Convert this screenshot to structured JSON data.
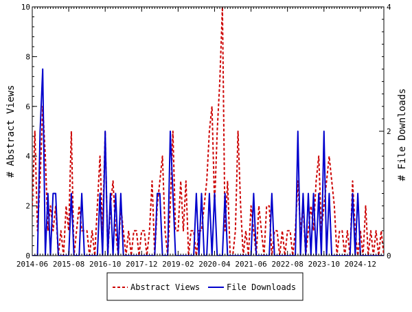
{
  "chart_data": {
    "type": "line",
    "title": "",
    "x_axis": {
      "type": "date",
      "range": [
        "2014-06",
        "2025-09"
      ],
      "ticks": [
        "2014-06",
        "2015-08",
        "2016-10",
        "2017-12",
        "2019-02",
        "2020-04",
        "2021-06",
        "2022-08",
        "2023-10",
        "2024-12"
      ]
    },
    "y_axis_left": {
      "label": "# Abstract Views",
      "range": [
        0,
        10
      ],
      "ticks": [
        "0",
        "2",
        "4",
        "6",
        "8",
        "10"
      ]
    },
    "y_axis_right": {
      "label": "# File Downloads",
      "range": [
        0,
        4
      ],
      "ticks": [
        "0",
        "2",
        "4"
      ]
    },
    "grid": false,
    "legend": {
      "position": "bottom-center",
      "entries": [
        "Abstract Views",
        "File Downloads"
      ]
    },
    "series": [
      {
        "name": "Abstract Views",
        "axis": "left",
        "color": "#cc0000",
        "style": "dashed",
        "points": [
          [
            "2014-06",
            2
          ],
          [
            "2014-07",
            5
          ],
          [
            "2014-08",
            1
          ],
          [
            "2014-09",
            3
          ],
          [
            "2014-10",
            6
          ],
          [
            "2014-11",
            4
          ],
          [
            "2014-12",
            1
          ],
          [
            "2015-01",
            2
          ],
          [
            "2015-02",
            1
          ],
          [
            "2015-03",
            2
          ],
          [
            "2015-04",
            0
          ],
          [
            "2015-05",
            1
          ],
          [
            "2015-06",
            0
          ],
          [
            "2015-07",
            2
          ],
          [
            "2015-08",
            1
          ],
          [
            "2015-09",
            5
          ],
          [
            "2015-10",
            0
          ],
          [
            "2015-11",
            1
          ],
          [
            "2015-12",
            2
          ],
          [
            "2016-01",
            1
          ],
          [
            "2016-02",
            1
          ],
          [
            "2016-03",
            1
          ],
          [
            "2016-04",
            0
          ],
          [
            "2016-05",
            1
          ],
          [
            "2016-06",
            0
          ],
          [
            "2016-07",
            2
          ],
          [
            "2016-08",
            4
          ],
          [
            "2016-09",
            1
          ],
          [
            "2016-10",
            5
          ],
          [
            "2016-11",
            0
          ],
          [
            "2016-12",
            2
          ],
          [
            "2017-01",
            3
          ],
          [
            "2017-02",
            1
          ],
          [
            "2017-03",
            0
          ],
          [
            "2017-04",
            2
          ],
          [
            "2017-05",
            1
          ],
          [
            "2017-06",
            0
          ],
          [
            "2017-07",
            1
          ],
          [
            "2017-08",
            0
          ],
          [
            "2017-09",
            1
          ],
          [
            "2017-10",
            1
          ],
          [
            "2017-11",
            0
          ],
          [
            "2017-12",
            1
          ],
          [
            "2018-01",
            1
          ],
          [
            "2018-02",
            0
          ],
          [
            "2018-03",
            1
          ],
          [
            "2018-04",
            3
          ],
          [
            "2018-05",
            0
          ],
          [
            "2018-06",
            2
          ],
          [
            "2018-07",
            3
          ],
          [
            "2018-08",
            4
          ],
          [
            "2018-09",
            1
          ],
          [
            "2018-10",
            0
          ],
          [
            "2018-11",
            2
          ],
          [
            "2018-12",
            5
          ],
          [
            "2019-01",
            1
          ],
          [
            "2019-02",
            1
          ],
          [
            "2019-03",
            3
          ],
          [
            "2019-04",
            1
          ],
          [
            "2019-05",
            3
          ],
          [
            "2019-06",
            0
          ],
          [
            "2019-07",
            1
          ],
          [
            "2019-08",
            1
          ],
          [
            "2019-09",
            0
          ],
          [
            "2019-10",
            1
          ],
          [
            "2019-11",
            1
          ],
          [
            "2019-12",
            2
          ],
          [
            "2020-01",
            3
          ],
          [
            "2020-02",
            5
          ],
          [
            "2020-03",
            6
          ],
          [
            "2020-04",
            2
          ],
          [
            "2020-05",
            5
          ],
          [
            "2020-06",
            7
          ],
          [
            "2020-07",
            10
          ],
          [
            "2020-08",
            1
          ],
          [
            "2020-09",
            3
          ],
          [
            "2020-10",
            0
          ],
          [
            "2020-11",
            0
          ],
          [
            "2020-12",
            1
          ],
          [
            "2021-01",
            5
          ],
          [
            "2021-02",
            2
          ],
          [
            "2021-03",
            0
          ],
          [
            "2021-04",
            1
          ],
          [
            "2021-05",
            0
          ],
          [
            "2021-06",
            2
          ],
          [
            "2021-07",
            1
          ],
          [
            "2021-08",
            0
          ],
          [
            "2021-09",
            2
          ],
          [
            "2021-10",
            1
          ],
          [
            "2021-11",
            0
          ],
          [
            "2021-12",
            2
          ],
          [
            "2022-01",
            2
          ],
          [
            "2022-02",
            0
          ],
          [
            "2022-03",
            1
          ],
          [
            "2022-04",
            1
          ],
          [
            "2022-05",
            0
          ],
          [
            "2022-06",
            1
          ],
          [
            "2022-07",
            0
          ],
          [
            "2022-08",
            1
          ],
          [
            "2022-09",
            1
          ],
          [
            "2022-10",
            0
          ],
          [
            "2022-11",
            1
          ],
          [
            "2022-12",
            3
          ],
          [
            "2023-01",
            1
          ],
          [
            "2023-02",
            2
          ],
          [
            "2023-03",
            0
          ],
          [
            "2023-04",
            1
          ],
          [
            "2023-05",
            2
          ],
          [
            "2023-06",
            1
          ],
          [
            "2023-07",
            3
          ],
          [
            "2023-08",
            4
          ],
          [
            "2023-09",
            1
          ],
          [
            "2023-10",
            2
          ],
          [
            "2023-11",
            3
          ],
          [
            "2023-12",
            4
          ],
          [
            "2024-01",
            3
          ],
          [
            "2024-02",
            2
          ],
          [
            "2024-03",
            0
          ],
          [
            "2024-04",
            1
          ],
          [
            "2024-05",
            1
          ],
          [
            "2024-06",
            0
          ],
          [
            "2024-07",
            1
          ],
          [
            "2024-08",
            0
          ],
          [
            "2024-09",
            3
          ],
          [
            "2024-10",
            1
          ],
          [
            "2024-11",
            0
          ],
          [
            "2024-12",
            1
          ],
          [
            "2025-01",
            0
          ],
          [
            "2025-02",
            2
          ],
          [
            "2025-03",
            0
          ],
          [
            "2025-04",
            1
          ],
          [
            "2025-05",
            0
          ],
          [
            "2025-06",
            1
          ],
          [
            "2025-07",
            0
          ],
          [
            "2025-08",
            1
          ],
          [
            "2025-09",
            0
          ]
        ]
      },
      {
        "name": "File Downloads",
        "axis": "right",
        "color": "#0000cc",
        "style": "solid",
        "points": [
          [
            "2014-06",
            0
          ],
          [
            "2014-07",
            0
          ],
          [
            "2014-08",
            0
          ],
          [
            "2014-09",
            2
          ],
          [
            "2014-10",
            3
          ],
          [
            "2014-11",
            0
          ],
          [
            "2014-12",
            1
          ],
          [
            "2015-01",
            0
          ],
          [
            "2015-02",
            1
          ],
          [
            "2015-03",
            1
          ],
          [
            "2015-04",
            0
          ],
          [
            "2015-05",
            0
          ],
          [
            "2015-06",
            0
          ],
          [
            "2015-07",
            0
          ],
          [
            "2015-08",
            0
          ],
          [
            "2015-09",
            1
          ],
          [
            "2015-10",
            0
          ],
          [
            "2015-11",
            0
          ],
          [
            "2015-12",
            0
          ],
          [
            "2016-01",
            1
          ],
          [
            "2016-02",
            0
          ],
          [
            "2016-03",
            0
          ],
          [
            "2016-04",
            0
          ],
          [
            "2016-05",
            0
          ],
          [
            "2016-06",
            0
          ],
          [
            "2016-07",
            0
          ],
          [
            "2016-08",
            1
          ],
          [
            "2016-09",
            0
          ],
          [
            "2016-10",
            2
          ],
          [
            "2016-11",
            0
          ],
          [
            "2016-12",
            1
          ],
          [
            "2017-01",
            0
          ],
          [
            "2017-02",
            1
          ],
          [
            "2017-03",
            0
          ],
          [
            "2017-04",
            1
          ],
          [
            "2017-05",
            0
          ],
          [
            "2017-06",
            0
          ],
          [
            "2017-07",
            0
          ],
          [
            "2017-08",
            0
          ],
          [
            "2017-09",
            0
          ],
          [
            "2017-10",
            0
          ],
          [
            "2017-11",
            0
          ],
          [
            "2017-12",
            0
          ],
          [
            "2018-01",
            0
          ],
          [
            "2018-02",
            0
          ],
          [
            "2018-03",
            0
          ],
          [
            "2018-04",
            0
          ],
          [
            "2018-05",
            0
          ],
          [
            "2018-06",
            1
          ],
          [
            "2018-07",
            1
          ],
          [
            "2018-08",
            0
          ],
          [
            "2018-09",
            0
          ],
          [
            "2018-10",
            0
          ],
          [
            "2018-11",
            2
          ],
          [
            "2018-12",
            1
          ],
          [
            "2019-01",
            0
          ],
          [
            "2019-02",
            0
          ],
          [
            "2019-03",
            0
          ],
          [
            "2019-04",
            0
          ],
          [
            "2019-05",
            0
          ],
          [
            "2019-06",
            0
          ],
          [
            "2019-07",
            0
          ],
          [
            "2019-08",
            0
          ],
          [
            "2019-09",
            1
          ],
          [
            "2019-10",
            0
          ],
          [
            "2019-11",
            1
          ],
          [
            "2019-12",
            0
          ],
          [
            "2020-01",
            0
          ],
          [
            "2020-02",
            1
          ],
          [
            "2020-03",
            0
          ],
          [
            "2020-04",
            1
          ],
          [
            "2020-05",
            0
          ],
          [
            "2020-06",
            0
          ],
          [
            "2020-07",
            0
          ],
          [
            "2020-08",
            1
          ],
          [
            "2020-09",
            0
          ],
          [
            "2020-10",
            0
          ],
          [
            "2020-11",
            0
          ],
          [
            "2020-12",
            0
          ],
          [
            "2021-01",
            0
          ],
          [
            "2021-02",
            0
          ],
          [
            "2021-03",
            0
          ],
          [
            "2021-04",
            0
          ],
          [
            "2021-05",
            0
          ],
          [
            "2021-06",
            0
          ],
          [
            "2021-07",
            1
          ],
          [
            "2021-08",
            0
          ],
          [
            "2021-09",
            0
          ],
          [
            "2021-10",
            0
          ],
          [
            "2021-11",
            0
          ],
          [
            "2021-12",
            0
          ],
          [
            "2022-01",
            0
          ],
          [
            "2022-02",
            1
          ],
          [
            "2022-03",
            0
          ],
          [
            "2022-04",
            0
          ],
          [
            "2022-05",
            0
          ],
          [
            "2022-06",
            0
          ],
          [
            "2022-07",
            0
          ],
          [
            "2022-08",
            0
          ],
          [
            "2022-09",
            0
          ],
          [
            "2022-10",
            0
          ],
          [
            "2022-11",
            0
          ],
          [
            "2022-12",
            2
          ],
          [
            "2023-01",
            0
          ],
          [
            "2023-02",
            1
          ],
          [
            "2023-03",
            0
          ],
          [
            "2023-04",
            1
          ],
          [
            "2023-05",
            0
          ],
          [
            "2023-06",
            1
          ],
          [
            "2023-07",
            0
          ],
          [
            "2023-08",
            1
          ],
          [
            "2023-09",
            0
          ],
          [
            "2023-10",
            2
          ],
          [
            "2023-11",
            0
          ],
          [
            "2023-12",
            1
          ],
          [
            "2024-01",
            0
          ],
          [
            "2024-02",
            0
          ],
          [
            "2024-03",
            0
          ],
          [
            "2024-04",
            0
          ],
          [
            "2024-05",
            0
          ],
          [
            "2024-06",
            0
          ],
          [
            "2024-07",
            0
          ],
          [
            "2024-08",
            0
          ],
          [
            "2024-09",
            1
          ],
          [
            "2024-10",
            0
          ],
          [
            "2024-11",
            1
          ],
          [
            "2024-12",
            0
          ],
          [
            "2025-01",
            0
          ],
          [
            "2025-02",
            0
          ],
          [
            "2025-03",
            0
          ],
          [
            "2025-04",
            0
          ],
          [
            "2025-05",
            0
          ],
          [
            "2025-06",
            0
          ],
          [
            "2025-07",
            0
          ],
          [
            "2025-08",
            0
          ],
          [
            "2025-09",
            0
          ]
        ]
      }
    ]
  }
}
